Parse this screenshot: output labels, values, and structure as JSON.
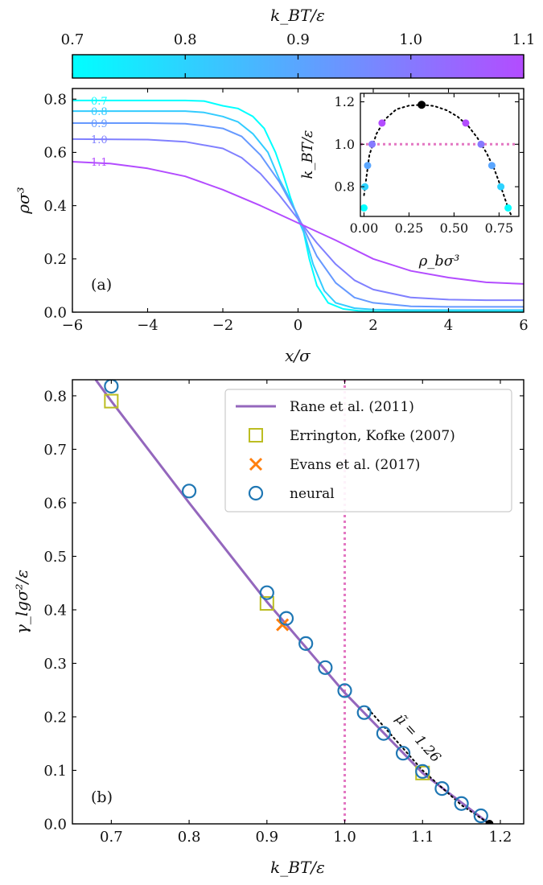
{
  "colorbar": {
    "label": "k_BT/ε",
    "ticks": [
      0.7,
      0.8,
      0.9,
      1.0,
      1.1
    ],
    "tick_labels": [
      "0.7",
      "0.8",
      "0.9",
      "1.0",
      "1.1"
    ],
    "range": [
      0.7,
      1.1
    ],
    "colors": [
      "#00ffff",
      "#b34cff"
    ]
  },
  "chart_data": [
    {
      "type": "line",
      "panel_label": "(a)",
      "xlabel": "x/σ",
      "ylabel": "ρσ³",
      "xlim": [
        -6,
        6
      ],
      "ylim": [
        0,
        0.84
      ],
      "xticks": [
        -6,
        -4,
        -2,
        0,
        2,
        4,
        6
      ],
      "xtick_labels": [
        "−6",
        "−4",
        "−2",
        "0",
        "2",
        "4",
        "6"
      ],
      "yticks": [
        0.0,
        0.2,
        0.4,
        0.6,
        0.8
      ],
      "ytick_labels": [
        "0.0",
        "0.2",
        "0.4",
        "0.6",
        "0.8"
      ],
      "series": [
        {
          "name": "0.7",
          "T": 0.7,
          "rho_liquid": 0.795,
          "rho_gas": 0.002,
          "color": "#00ffff",
          "x": [
            -6,
            -5,
            -4,
            -3,
            -2.5,
            -2,
            -1.6,
            -1.2,
            -0.9,
            -0.6,
            -0.4,
            -0.2,
            0,
            0.15,
            0.3,
            0.5,
            0.8,
            1.2,
            1.6,
            2,
            3,
            4,
            6
          ],
          "y": [
            0.795,
            0.795,
            0.795,
            0.795,
            0.793,
            0.775,
            0.765,
            0.735,
            0.69,
            0.6,
            0.52,
            0.43,
            0.35,
            0.3,
            0.2,
            0.1,
            0.035,
            0.012,
            0.005,
            0.003,
            0.002,
            0.002,
            0.002
          ]
        },
        {
          "name": "0.8",
          "T": 0.8,
          "rho_liquid": 0.755,
          "rho_gas": 0.008,
          "color": "#33ccff",
          "x": [
            -6,
            -4,
            -3,
            -2.5,
            -2,
            -1.6,
            -1.2,
            -0.8,
            -0.5,
            -0.2,
            0,
            0.2,
            0.4,
            0.7,
            1,
            1.5,
            2,
            3,
            4,
            6
          ],
          "y": [
            0.755,
            0.755,
            0.755,
            0.75,
            0.735,
            0.715,
            0.67,
            0.6,
            0.5,
            0.42,
            0.36,
            0.28,
            0.18,
            0.08,
            0.035,
            0.015,
            0.01,
            0.008,
            0.008,
            0.008
          ]
        },
        {
          "name": "0.9",
          "T": 0.9,
          "rho_liquid": 0.71,
          "rho_gas": 0.02,
          "color": "#6699ff",
          "x": [
            -6,
            -4,
            -3,
            -2.5,
            -2,
            -1.5,
            -1,
            -0.5,
            0,
            0.5,
            1,
            1.5,
            2,
            3,
            4,
            6
          ],
          "y": [
            0.71,
            0.71,
            0.708,
            0.7,
            0.69,
            0.66,
            0.59,
            0.49,
            0.36,
            0.21,
            0.11,
            0.055,
            0.035,
            0.022,
            0.02,
            0.02
          ]
        },
        {
          "name": "1.0",
          "T": 1.0,
          "rho_liquid": 0.65,
          "rho_gas": 0.045,
          "color": "#8080ff",
          "x": [
            -6,
            -4,
            -3,
            -2,
            -1.5,
            -1,
            -0.5,
            0,
            0.5,
            1,
            1.5,
            2,
            3,
            4,
            5,
            6
          ],
          "y": [
            0.65,
            0.648,
            0.64,
            0.615,
            0.58,
            0.52,
            0.44,
            0.35,
            0.26,
            0.18,
            0.12,
            0.085,
            0.055,
            0.047,
            0.045,
            0.045
          ]
        },
        {
          "name": "1.1",
          "T": 1.1,
          "rho_liquid": 0.565,
          "rho_gas": 0.105,
          "color": "#b34cff",
          "x": [
            -6,
            -5,
            -4,
            -3,
            -2,
            -1,
            0,
            1,
            2,
            3,
            4,
            5,
            6
          ],
          "y": [
            0.565,
            0.558,
            0.54,
            0.51,
            0.46,
            0.4,
            0.335,
            0.27,
            0.2,
            0.155,
            0.13,
            0.112,
            0.106
          ]
        }
      ]
    },
    {
      "type": "scatter",
      "inset": true,
      "xlabel": "ρ_bσ³",
      "ylabel": "k_BT/ε",
      "xlim": [
        -0.02,
        0.86
      ],
      "ylim": [
        0.66,
        1.24
      ],
      "xticks": [
        0.0,
        0.25,
        0.5,
        0.75
      ],
      "xtick_labels": [
        "0.00",
        "0.25",
        "0.50",
        "0.75"
      ],
      "yticks": [
        0.8,
        1.0,
        1.2
      ],
      "ytick_labels": [
        "0.8",
        "1.0",
        "1.2"
      ],
      "reference_line_y": 1.0,
      "points": [
        {
          "x": 0.0,
          "y": 0.7
        },
        {
          "x": 0.005,
          "y": 0.8
        },
        {
          "x": 0.02,
          "y": 0.9
        },
        {
          "x": 0.045,
          "y": 1.0
        },
        {
          "x": 0.1,
          "y": 1.1
        },
        {
          "x": 0.8,
          "y": 0.7
        },
        {
          "x": 0.76,
          "y": 0.8
        },
        {
          "x": 0.71,
          "y": 0.9
        },
        {
          "x": 0.65,
          "y": 1.0
        },
        {
          "x": 0.565,
          "y": 1.1
        }
      ],
      "critical_point": {
        "x": 0.32,
        "y": 1.186
      },
      "fit_curve": {
        "x": [
          0.0,
          0.03,
          0.07,
          0.12,
          0.18,
          0.25,
          0.32,
          0.39,
          0.46,
          0.52,
          0.58,
          0.63,
          0.68,
          0.72,
          0.76,
          0.8,
          0.83
        ],
        "y": [
          0.76,
          0.95,
          1.05,
          1.12,
          1.165,
          1.182,
          1.186,
          1.18,
          1.16,
          1.13,
          1.085,
          1.03,
          0.96,
          0.89,
          0.8,
          0.7,
          0.64
        ]
      }
    },
    {
      "type": "scatter",
      "panel_label": "(b)",
      "xlabel": "k_BT/ε",
      "ylabel": "γ_lgσ²/ε",
      "xlim": [
        0.65,
        1.23
      ],
      "ylim": [
        0.0,
        0.83
      ],
      "xticks": [
        0.7,
        0.8,
        0.9,
        1.0,
        1.1,
        1.2
      ],
      "xtick_labels": [
        "0.7",
        "0.8",
        "0.9",
        "1.0",
        "1.1",
        "1.2"
      ],
      "yticks": [
        0.0,
        0.1,
        0.2,
        0.3,
        0.4,
        0.5,
        0.6,
        0.7,
        0.8
      ],
      "ytick_labels": [
        "0.0",
        "0.1",
        "0.2",
        "0.3",
        "0.4",
        "0.5",
        "0.6",
        "0.7",
        "0.8"
      ],
      "reference_line_x": 1.0,
      "legend_position": "top-right",
      "annotation": "μ̃ = 1.26",
      "critical_point": {
        "x": 1.186,
        "y": 0.0
      },
      "series": [
        {
          "name": "Rane et al. (2011)",
          "kind": "line",
          "color": "#9467bd",
          "x": [
            0.68,
            0.7,
            0.8,
            0.9,
            1.0,
            1.1,
            1.186
          ],
          "y": [
            0.83,
            0.79,
            0.6,
            0.415,
            0.245,
            0.095,
            0.0
          ]
        },
        {
          "name": "Errington, Kofke (2007)",
          "kind": "square",
          "color": "#bcbd22",
          "x": [
            0.7,
            0.9,
            1.1
          ],
          "y": [
            0.79,
            0.412,
            0.095
          ]
        },
        {
          "name": "Evans et al. (2017)",
          "kind": "cross",
          "color": "#ff7f0e",
          "x": [
            0.92
          ],
          "y": [
            0.372
          ]
        },
        {
          "name": "neural",
          "kind": "circle",
          "color": "#1f77b4",
          "x": [
            0.7,
            0.8,
            0.9,
            0.925,
            0.95,
            0.975,
            1.0,
            1.025,
            1.05,
            1.075,
            1.1,
            1.125,
            1.15,
            1.175
          ],
          "y": [
            0.818,
            0.622,
            0.432,
            0.384,
            0.337,
            0.292,
            0.249,
            0.208,
            0.169,
            0.132,
            0.098,
            0.066,
            0.038,
            0.015
          ]
        },
        {
          "name": "",
          "kind": "dotted-fit",
          "color": "#000000",
          "x": [
            1.03,
            1.1,
            1.15,
            1.186
          ],
          "y": [
            0.215,
            0.1,
            0.035,
            0.0
          ]
        }
      ]
    }
  ]
}
